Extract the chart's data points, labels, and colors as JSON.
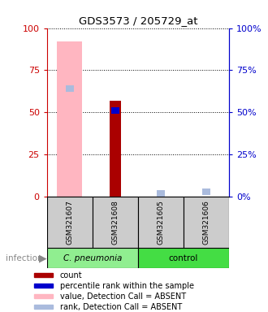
{
  "title": "GDS3573 / 205729_at",
  "categories": [
    "GSM321607",
    "GSM321608",
    "GSM321605",
    "GSM321606"
  ],
  "groups": [
    "C. pneumonia",
    "C. pneumonia",
    "control",
    "control"
  ],
  "ylim": [
    0,
    100
  ],
  "yticks": [
    0,
    25,
    50,
    75,
    100
  ],
  "count_values": [
    null,
    57,
    null,
    null
  ],
  "percentile_rank": [
    null,
    51,
    null,
    null
  ],
  "value_absent": [
    92,
    null,
    null,
    null
  ],
  "rank_absent": [
    64,
    null,
    2,
    3
  ],
  "bar_colors": {
    "count": "#AA0000",
    "percentile": "#0000CC",
    "value_absent": "#FFB6C1",
    "rank_absent": "#AABBDD"
  },
  "legend_items": [
    {
      "label": "count",
      "color": "#AA0000"
    },
    {
      "label": "percentile rank within the sample",
      "color": "#0000CC"
    },
    {
      "label": "value, Detection Call = ABSENT",
      "color": "#FFB6C1"
    },
    {
      "label": "rank, Detection Call = ABSENT",
      "color": "#AABBDD"
    }
  ],
  "left_axis_color": "#CC0000",
  "right_axis_color": "#0000CC",
  "infection_label": "infection",
  "group_colors": {
    "C. pneumonia": "#90EE90",
    "control": "#44DD44"
  }
}
